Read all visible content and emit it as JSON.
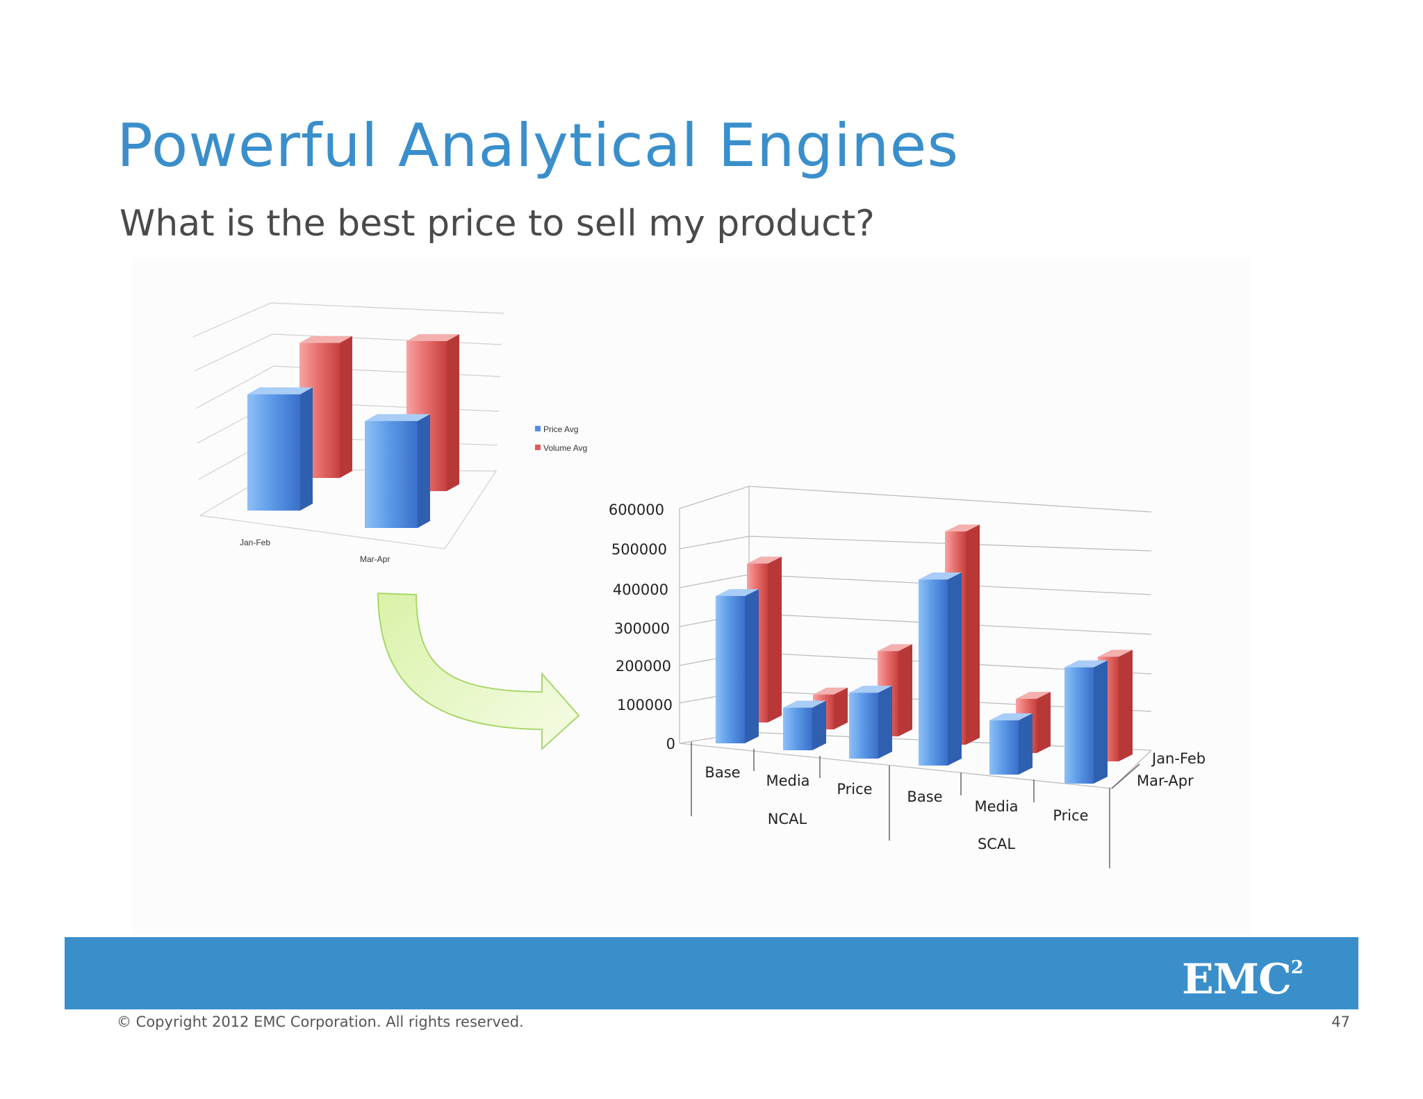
{
  "slide": {
    "title": "Powerful Analytical Engines",
    "subtitle": "What is the best price to sell my product?",
    "copyright": "© Copyright 2012 EMC Corporation. All rights reserved.",
    "page_number": "47",
    "logo_text": "EMC",
    "logo_superscript": "2"
  },
  "colors": {
    "title": "#3a8fcb",
    "footer_bar": "#3a8fcb",
    "series_blue": "#4f8fdf",
    "series_red": "#e05a5a",
    "arrow_fill": "#eaf7c4",
    "arrow_stroke": "#a8d66a"
  },
  "chart_data": [
    {
      "type": "bar",
      "style": "3d",
      "categories": [
        "Jan-Feb",
        "Mar-Apr"
      ],
      "series": [
        {
          "name": "Price Avg",
          "values": [
            62,
            57
          ]
        },
        {
          "name": "Volume Avg",
          "values": [
            72,
            80
          ]
        }
      ],
      "ylim": [
        0,
        100
      ],
      "legend": "right",
      "grid": true
    },
    {
      "type": "bar",
      "style": "3d",
      "categories": [
        "Base",
        "Media",
        "Price",
        "Base",
        "Media",
        "Price"
      ],
      "groups": [
        {
          "name": "NCAL",
          "categories": [
            "Base",
            "Media",
            "Price"
          ]
        },
        {
          "name": "SCAL",
          "categories": [
            "Base",
            "Media",
            "Price"
          ]
        }
      ],
      "series": [
        {
          "name": "Mar-Apr",
          "values": [
            380000,
            110000,
            170000,
            480000,
            140000,
            300000
          ]
        },
        {
          "name": "Jan-Feb",
          "values": [
            410000,
            90000,
            220000,
            550000,
            140000,
            270000
          ]
        }
      ],
      "yticks": [
        0,
        100000,
        200000,
        300000,
        400000,
        500000,
        600000
      ],
      "ylim": [
        0,
        600000
      ],
      "legend": "depth-axis right",
      "grid": true
    }
  ]
}
